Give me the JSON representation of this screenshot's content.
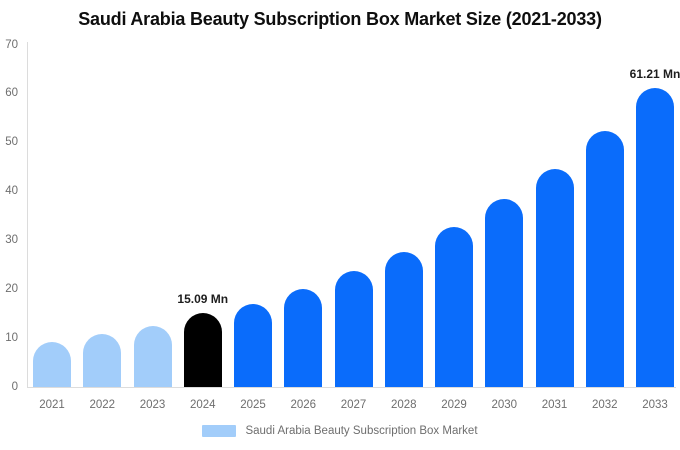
{
  "page": {
    "background": "#ffffff"
  },
  "chart_data": {
    "type": "bar",
    "title": "Saudi Arabia Beauty Subscription Box Market Size (2021-2033)",
    "categories": [
      "2021",
      "2022",
      "2023",
      "2024",
      "2025",
      "2026",
      "2027",
      "2028",
      "2029",
      "2030",
      "2031",
      "2032",
      "2033"
    ],
    "values": [
      9.3,
      10.9,
      12.4,
      15.09,
      16.9,
      20.0,
      23.8,
      27.7,
      32.7,
      38.4,
      44.6,
      52.3,
      61.21
    ],
    "data_labels": [
      "",
      "",
      "",
      "15.09 Mn",
      "",
      "",
      "",
      "",
      "",
      "",
      "",
      "",
      "61.21 Mn"
    ],
    "unit": "Mn",
    "bar_colors": [
      "#a2cdfa",
      "#a2cdfa",
      "#a2cdfa",
      "#000000",
      "#0a6cfb",
      "#0a6cfb",
      "#0a6cfb",
      "#0a6cfb",
      "#0a6cfb",
      "#0a6cfb",
      "#0a6cfb",
      "#0a6cfb",
      "#0a6cfb"
    ],
    "xlabel": "",
    "ylabel": "",
    "ylim": [
      0,
      70
    ],
    "yticks": [
      0,
      10,
      20,
      30,
      40,
      50,
      60,
      70
    ],
    "grid": false,
    "legend_position": "bottom",
    "axis_color": "#dcdcdc",
    "tick_text_color": "#6e6e6e",
    "data_label_color": "#1d1d1d",
    "title_color": "#0e0e0e"
  },
  "legend": {
    "label": "Saudi Arabia Beauty Subscription Box Market",
    "swatch_color": "#a2cdfa"
  }
}
